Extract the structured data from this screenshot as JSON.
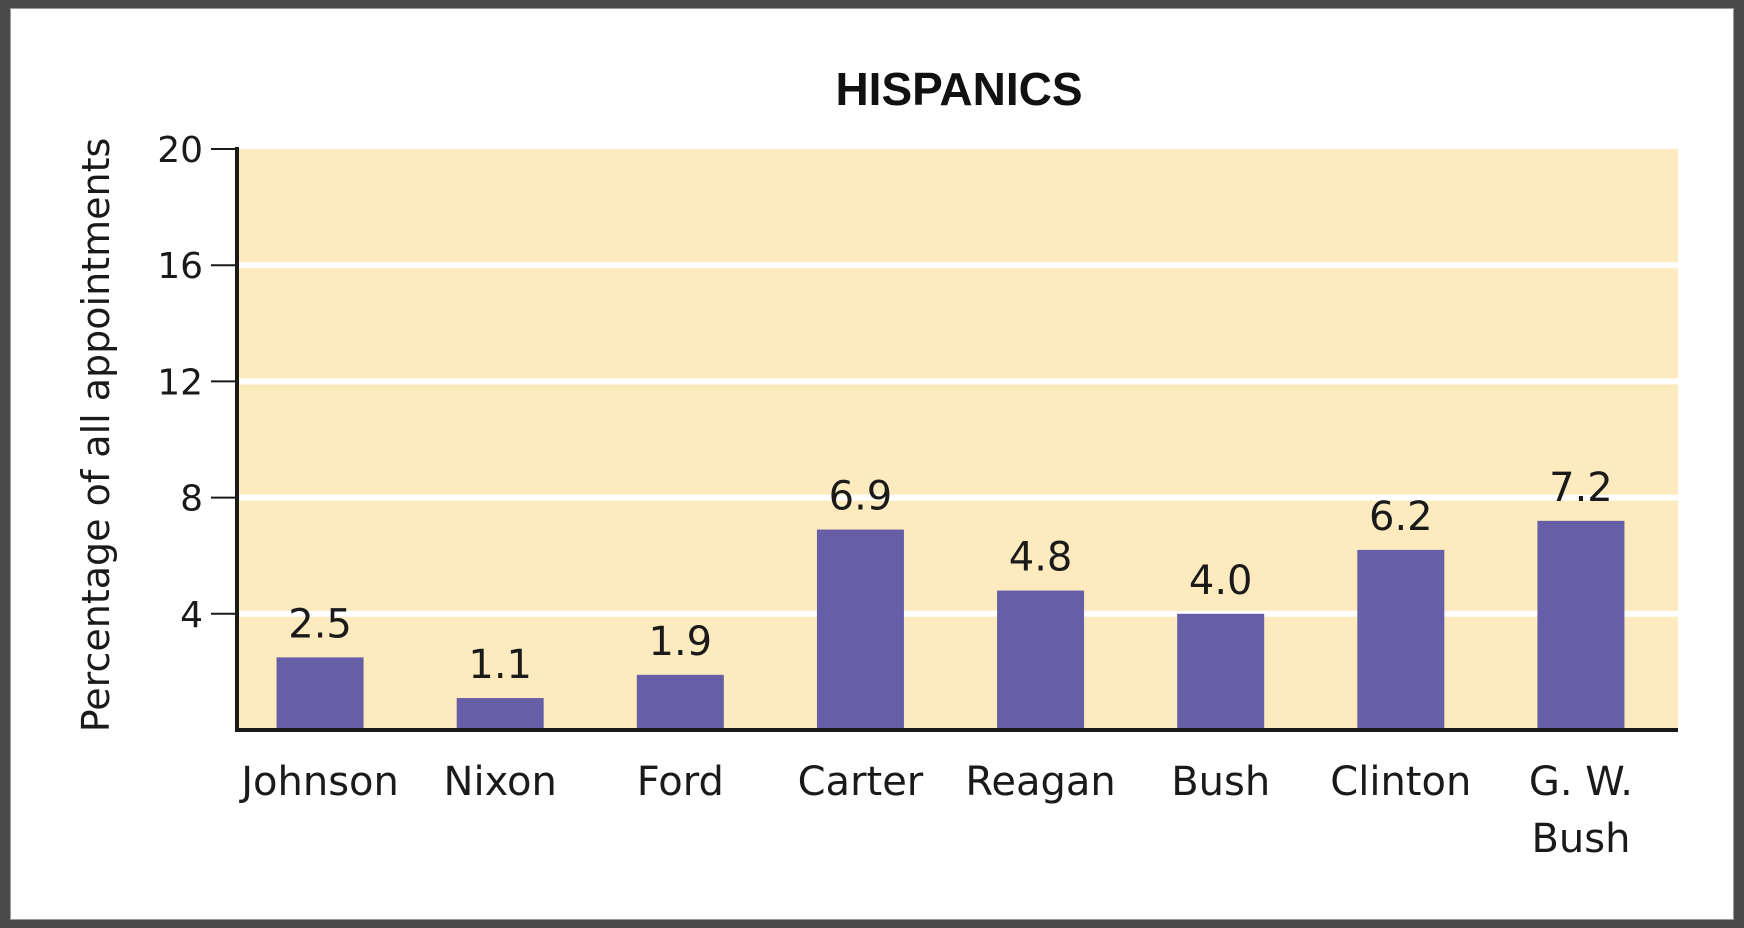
{
  "chart_data": {
    "type": "bar",
    "title": "HISPANICS",
    "xlabel": "",
    "ylabel": "Percentage of all appointments",
    "ylim": [
      0,
      20
    ],
    "yticks": [
      4,
      8,
      12,
      16,
      20
    ],
    "grid": true,
    "categories": [
      "Johnson",
      "Nixon",
      "Ford",
      "Carter",
      "Reagan",
      "Bush",
      "Clinton",
      "G. W. Bush"
    ],
    "category_lines": [
      [
        "Johnson"
      ],
      [
        "Nixon"
      ],
      [
        "Ford"
      ],
      [
        "Carter"
      ],
      [
        "Reagan"
      ],
      [
        "Bush"
      ],
      [
        "Clinton"
      ],
      [
        "G. W.",
        "Bush"
      ]
    ],
    "values": [
      2.5,
      1.1,
      1.9,
      6.9,
      4.8,
      4.0,
      6.2,
      7.2
    ],
    "data_labels": [
      "2.5",
      "1.1",
      "1.9",
      "6.9",
      "4.8",
      "4.0",
      "6.2",
      "7.2"
    ],
    "colors": {
      "bar": "#675ea8",
      "plot_background": "#fdebbf",
      "gridline": "#ffffff",
      "axis": "#1a1a1a"
    }
  }
}
